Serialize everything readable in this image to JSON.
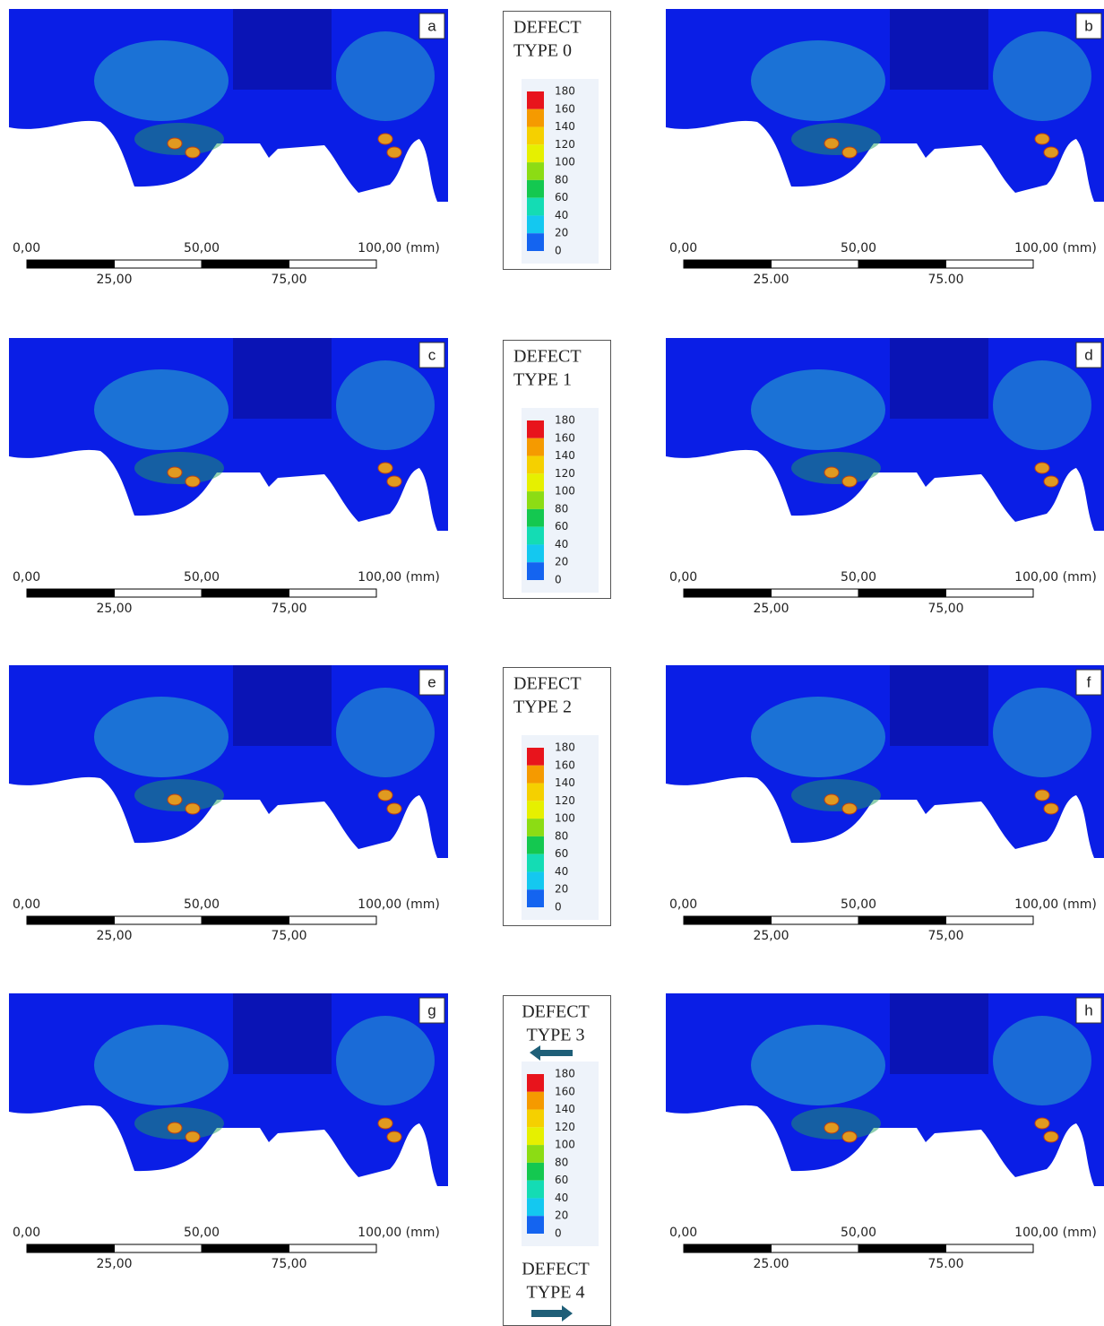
{
  "panels": [
    {
      "label": "a",
      "scale_top": [
        "0,00",
        "50,00",
        "100,00 (mm)"
      ],
      "scale_bottom": [
        "25,00",
        "75,00"
      ]
    },
    {
      "label": "b",
      "scale_top": [
        "0,00",
        "50,00",
        "100,00 (mm)"
      ],
      "scale_bottom": [
        "25.00",
        "75.00"
      ]
    },
    {
      "label": "c",
      "scale_top": [
        "0,00",
        "50,00",
        "100,00 (mm)"
      ],
      "scale_bottom": [
        "25,00",
        "75,00"
      ]
    },
    {
      "label": "d",
      "scale_top": [
        "0,00",
        "50,00",
        "100,00 (mm)"
      ],
      "scale_bottom": [
        "25,00",
        "75,00"
      ]
    },
    {
      "label": "e",
      "scale_top": [
        "0,00",
        "50,00",
        "100,00 (mm)"
      ],
      "scale_bottom": [
        "25,00",
        "75,00"
      ]
    },
    {
      "label": "f",
      "scale_top": [
        "0,00",
        "50,00",
        "100,00 (mm)"
      ],
      "scale_bottom": [
        "25,00",
        "75,00"
      ]
    },
    {
      "label": "g",
      "scale_top": [
        "0,00",
        "50,00",
        "100,00 (mm)"
      ],
      "scale_bottom": [
        "25,00",
        "75,00"
      ]
    },
    {
      "label": "h",
      "scale_top": [
        "0,00",
        "50,00",
        "100,00 (mm)"
      ],
      "scale_bottom": [
        "25.00",
        "75.00"
      ]
    }
  ],
  "legends": [
    {
      "title": [
        "DEFECT",
        "TYPE 0"
      ]
    },
    {
      "title": [
        "DEFECT",
        "TYPE 1"
      ]
    },
    {
      "title": [
        "DEFECT",
        "TYPE 2"
      ]
    },
    {
      "title": [
        "DEFECT",
        "TYPE 3"
      ],
      "extra_title": [
        "DEFECT",
        "TYPE 4"
      ]
    }
  ],
  "colorbar": {
    "ticks": [
      180,
      160,
      140,
      120,
      100,
      80,
      60,
      40,
      20,
      0
    ],
    "colors": [
      "#e8141c",
      "#f59a00",
      "#f5d000",
      "#e6f000",
      "#8cdc14",
      "#14c850",
      "#14dcb4",
      "#14c8f0",
      "#1464f0"
    ]
  }
}
